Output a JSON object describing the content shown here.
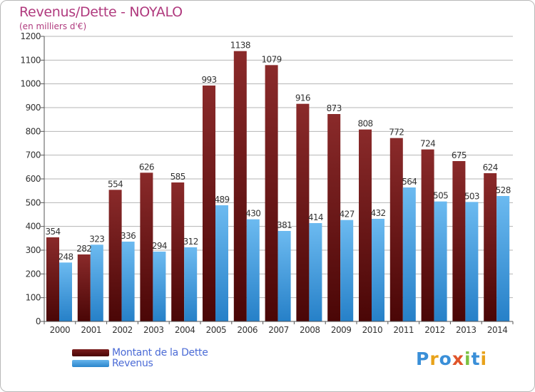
{
  "title": "Revenus/Dette - NOYALO",
  "subtitle": "(en milliers d'€)",
  "colors": {
    "title": "#b03a7e",
    "dette_top": "#8a2a2a",
    "dette_bottom": "#4a0606",
    "revenus_top": "#6cbaf0",
    "revenus_bottom": "#2680c8",
    "legend_text": "#4b6bd6"
  },
  "legend": {
    "dette": "Montant de la Dette",
    "revenus": "Revenus"
  },
  "logo": [
    "P",
    "r",
    "o",
    "x",
    "i",
    "t",
    "i"
  ],
  "chart_data": {
    "type": "bar",
    "title": "Revenus/Dette - NOYALO",
    "subtitle": "(en milliers d'€)",
    "categories": [
      "2000",
      "2001",
      "2002",
      "2003",
      "2004",
      "2005",
      "2006",
      "2007",
      "2008",
      "2009",
      "2010",
      "2011",
      "2012",
      "2013",
      "2014"
    ],
    "series": [
      {
        "name": "Montant de la Dette",
        "values": [
          354,
          282,
          554,
          626,
          585,
          993,
          1138,
          1079,
          916,
          873,
          808,
          772,
          724,
          675,
          624
        ]
      },
      {
        "name": "Revenus",
        "values": [
          248,
          323,
          336,
          294,
          312,
          489,
          430,
          381,
          414,
          427,
          432,
          564,
          505,
          503,
          528
        ]
      }
    ],
    "ylim": [
      0,
      1200
    ],
    "yticks": [
      0,
      100,
      200,
      300,
      400,
      500,
      600,
      700,
      800,
      900,
      1000,
      1100,
      1200
    ],
    "grid": true,
    "legend_position": "bottom-left"
  }
}
